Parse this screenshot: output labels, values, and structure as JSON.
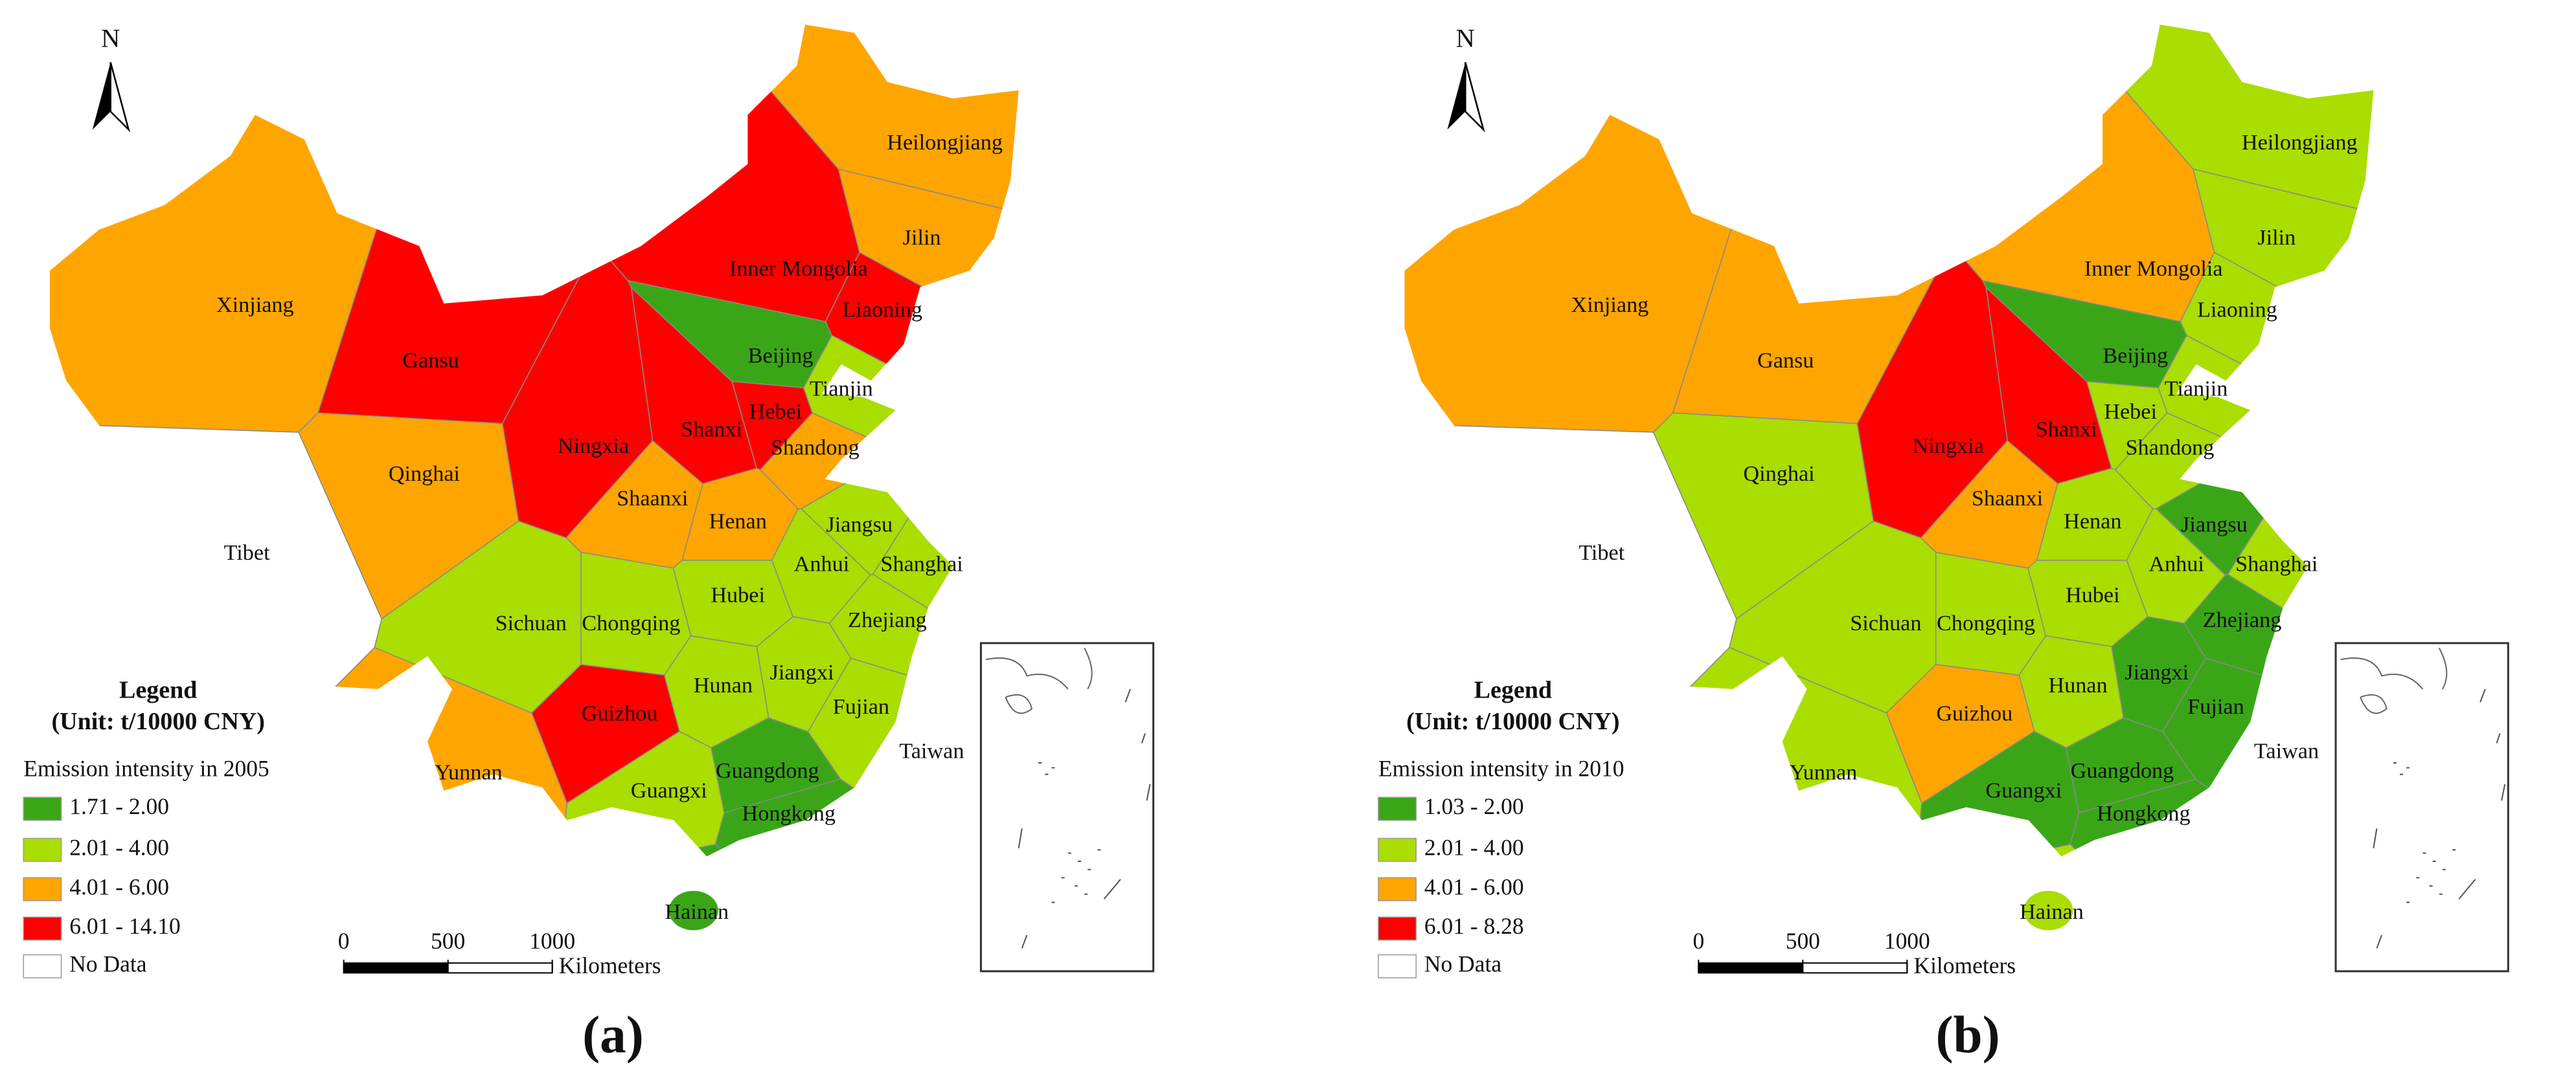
{
  "maps": [
    {
      "panel": "(a)",
      "north": "N",
      "legend": {
        "title": "Legend",
        "unit": "(Unit: t/10000 CNY)",
        "subtitle": "Emission intensity in 2005",
        "classes": [
          {
            "label": "1.71 - 2.00",
            "color": "#3aa617"
          },
          {
            "label": "2.01 - 4.00",
            "color": "#aadd00"
          },
          {
            "label": "4.01 - 6.00",
            "color": "#ffa500"
          },
          {
            "label": "6.01 - 14.10",
            "color": "#ff0000"
          }
        ],
        "no_data": {
          "label": "No Data",
          "color": "#ffffff"
        }
      },
      "scale_bar": {
        "ticks": [
          0,
          500,
          1000
        ],
        "unit": "Kilometers"
      },
      "regions": [
        {
          "name": "Xinjiang",
          "color": "#ffa500"
        },
        {
          "name": "Tibet",
          "color": "#ffffff"
        },
        {
          "name": "Qinghai",
          "color": "#ffa500"
        },
        {
          "name": "Gansu",
          "color": "#ff0000"
        },
        {
          "name": "Inner Mongolia",
          "color": "#ff0000"
        },
        {
          "name": "Heilongjiang",
          "color": "#ffa500"
        },
        {
          "name": "Jilin",
          "color": "#ffa500"
        },
        {
          "name": "Liaoning",
          "color": "#ff0000"
        },
        {
          "name": "Beijing",
          "color": "#3aa617"
        },
        {
          "name": "Tianjin",
          "color": "#aadd00"
        },
        {
          "name": "Hebei",
          "color": "#ff0000"
        },
        {
          "name": "Shanxi",
          "color": "#ff0000"
        },
        {
          "name": "Ningxia",
          "color": "#ff0000"
        },
        {
          "name": "Shandong",
          "color": "#ffa500"
        },
        {
          "name": "Shaanxi",
          "color": "#ffa500"
        },
        {
          "name": "Henan",
          "color": "#ffa500"
        },
        {
          "name": "Jiangsu",
          "color": "#aadd00"
        },
        {
          "name": "Anhui",
          "color": "#aadd00"
        },
        {
          "name": "Shanghai",
          "color": "#aadd00"
        },
        {
          "name": "Sichuan",
          "color": "#aadd00"
        },
        {
          "name": "Chongqing",
          "color": "#aadd00"
        },
        {
          "name": "Hubei",
          "color": "#aadd00"
        },
        {
          "name": "Zhejiang",
          "color": "#aadd00"
        },
        {
          "name": "Hunan",
          "color": "#aadd00"
        },
        {
          "name": "Jiangxi",
          "color": "#aadd00"
        },
        {
          "name": "Fujian",
          "color": "#aadd00"
        },
        {
          "name": "Taiwan",
          "color": "#ffffff"
        },
        {
          "name": "Guizhou",
          "color": "#ff0000"
        },
        {
          "name": "Yunnan",
          "color": "#ffa500"
        },
        {
          "name": "Guangxi",
          "color": "#aadd00"
        },
        {
          "name": "Guangdong",
          "color": "#3aa617"
        },
        {
          "name": "Hongkong",
          "color": "#3aa617"
        },
        {
          "name": "Hainan",
          "color": "#3aa617"
        }
      ]
    },
    {
      "panel": "(b)",
      "north": "N",
      "legend": {
        "title": "Legend",
        "unit": "(Unit: t/10000 CNY)",
        "subtitle": "Emission intensity in 2010",
        "classes": [
          {
            "label": "1.03 - 2.00",
            "color": "#3aa617"
          },
          {
            "label": "2.01 - 4.00",
            "color": "#aadd00"
          },
          {
            "label": "4.01 - 6.00",
            "color": "#ffa500"
          },
          {
            "label": "6.01 - 8.28",
            "color": "#ff0000"
          }
        ],
        "no_data": {
          "label": "No Data",
          "color": "#ffffff"
        }
      },
      "scale_bar": {
        "ticks": [
          0,
          500,
          1000
        ],
        "unit": "Kilometers"
      },
      "regions": [
        {
          "name": "Xinjiang",
          "color": "#ffa500"
        },
        {
          "name": "Tibet",
          "color": "#ffffff"
        },
        {
          "name": "Qinghai",
          "color": "#aadd00"
        },
        {
          "name": "Gansu",
          "color": "#ffa500"
        },
        {
          "name": "Inner Mongolia",
          "color": "#ffa500"
        },
        {
          "name": "Heilongjiang",
          "color": "#aadd00"
        },
        {
          "name": "Jilin",
          "color": "#aadd00"
        },
        {
          "name": "Liaoning",
          "color": "#aadd00"
        },
        {
          "name": "Beijing",
          "color": "#3aa617"
        },
        {
          "name": "Tianjin",
          "color": "#aadd00"
        },
        {
          "name": "Hebei",
          "color": "#aadd00"
        },
        {
          "name": "Shanxi",
          "color": "#ff0000"
        },
        {
          "name": "Ningxia",
          "color": "#ff0000"
        },
        {
          "name": "Shandong",
          "color": "#aadd00"
        },
        {
          "name": "Shaanxi",
          "color": "#ffa500"
        },
        {
          "name": "Henan",
          "color": "#aadd00"
        },
        {
          "name": "Jiangsu",
          "color": "#3aa617"
        },
        {
          "name": "Anhui",
          "color": "#aadd00"
        },
        {
          "name": "Shanghai",
          "color": "#aadd00"
        },
        {
          "name": "Sichuan",
          "color": "#aadd00"
        },
        {
          "name": "Chongqing",
          "color": "#aadd00"
        },
        {
          "name": "Hubei",
          "color": "#aadd00"
        },
        {
          "name": "Zhejiang",
          "color": "#3aa617"
        },
        {
          "name": "Hunan",
          "color": "#aadd00"
        },
        {
          "name": "Jiangxi",
          "color": "#3aa617"
        },
        {
          "name": "Fujian",
          "color": "#3aa617"
        },
        {
          "name": "Taiwan",
          "color": "#ffffff"
        },
        {
          "name": "Guizhou",
          "color": "#ffa500"
        },
        {
          "name": "Yunnan",
          "color": "#aadd00"
        },
        {
          "name": "Guangxi",
          "color": "#3aa617"
        },
        {
          "name": "Guangdong",
          "color": "#3aa617"
        },
        {
          "name": "Hongkong",
          "color": "#3aa617"
        },
        {
          "name": "Hainan",
          "color": "#aadd00"
        }
      ]
    }
  ]
}
